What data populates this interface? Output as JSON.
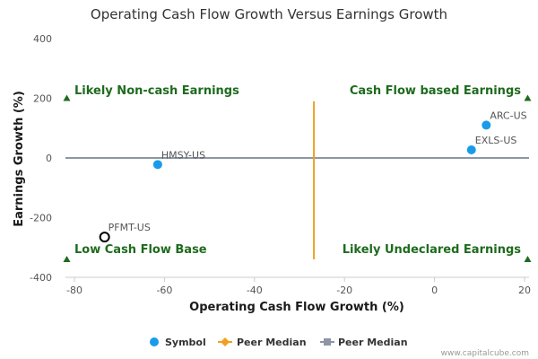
{
  "chart_data": {
    "type": "scatter",
    "title": "Operating Cash Flow Growth Versus Earnings Growth",
    "xlabel": "Operating Cash Flow Growth (%)",
    "ylabel": "Earnings Growth (%)",
    "xlim": [
      -82,
      21
    ],
    "ylim": [
      -400,
      400
    ],
    "xticks": [
      -80,
      -60,
      -40,
      -20,
      0,
      20
    ],
    "yticks": [
      400,
      200,
      0,
      -200,
      -400
    ],
    "grid": false,
    "points": [
      {
        "label": "ARC-US",
        "x": 11.5,
        "y": 110,
        "style": "filled",
        "color": "#1a9bea"
      },
      {
        "label": "EXLS-US",
        "x": 8.2,
        "y": 27,
        "style": "filled",
        "color": "#1a9bea"
      },
      {
        "label": "HMSY-US",
        "x": -61.5,
        "y": -22,
        "style": "filled",
        "color": "#1a9bea"
      },
      {
        "label": "PFMT-US",
        "x": -73.3,
        "y": -265,
        "style": "hollow",
        "color": "#000000"
      }
    ],
    "peer_median_x": -26.8,
    "peer_median_y": 0,
    "peer_median_x_color": "#f0a020",
    "peer_median_y_color": "#8e95a6",
    "quadrants": {
      "top_left": "Likely Non-cash Earnings",
      "top_right": "Cash Flow based Earnings",
      "bottom_left": "Low Cash Flow Base",
      "bottom_right": "Likely Undeclared Earnings"
    },
    "quadrant_marker_y": {
      "top": 200,
      "bottom": -340
    },
    "legend": {
      "placement": "bottom",
      "items": [
        {
          "label": "Symbol",
          "marker": "circle",
          "color": "#1a9bea"
        },
        {
          "label": "Peer Median",
          "marker": "diamond",
          "color": "#f0a020"
        },
        {
          "label": "Peer Median",
          "marker": "square",
          "color": "#8e95a6"
        }
      ]
    },
    "credit": "www.capitalcube.com",
    "colors": {
      "quadrant_text": "#1e6b1e",
      "marker": "#1a9bea"
    }
  }
}
